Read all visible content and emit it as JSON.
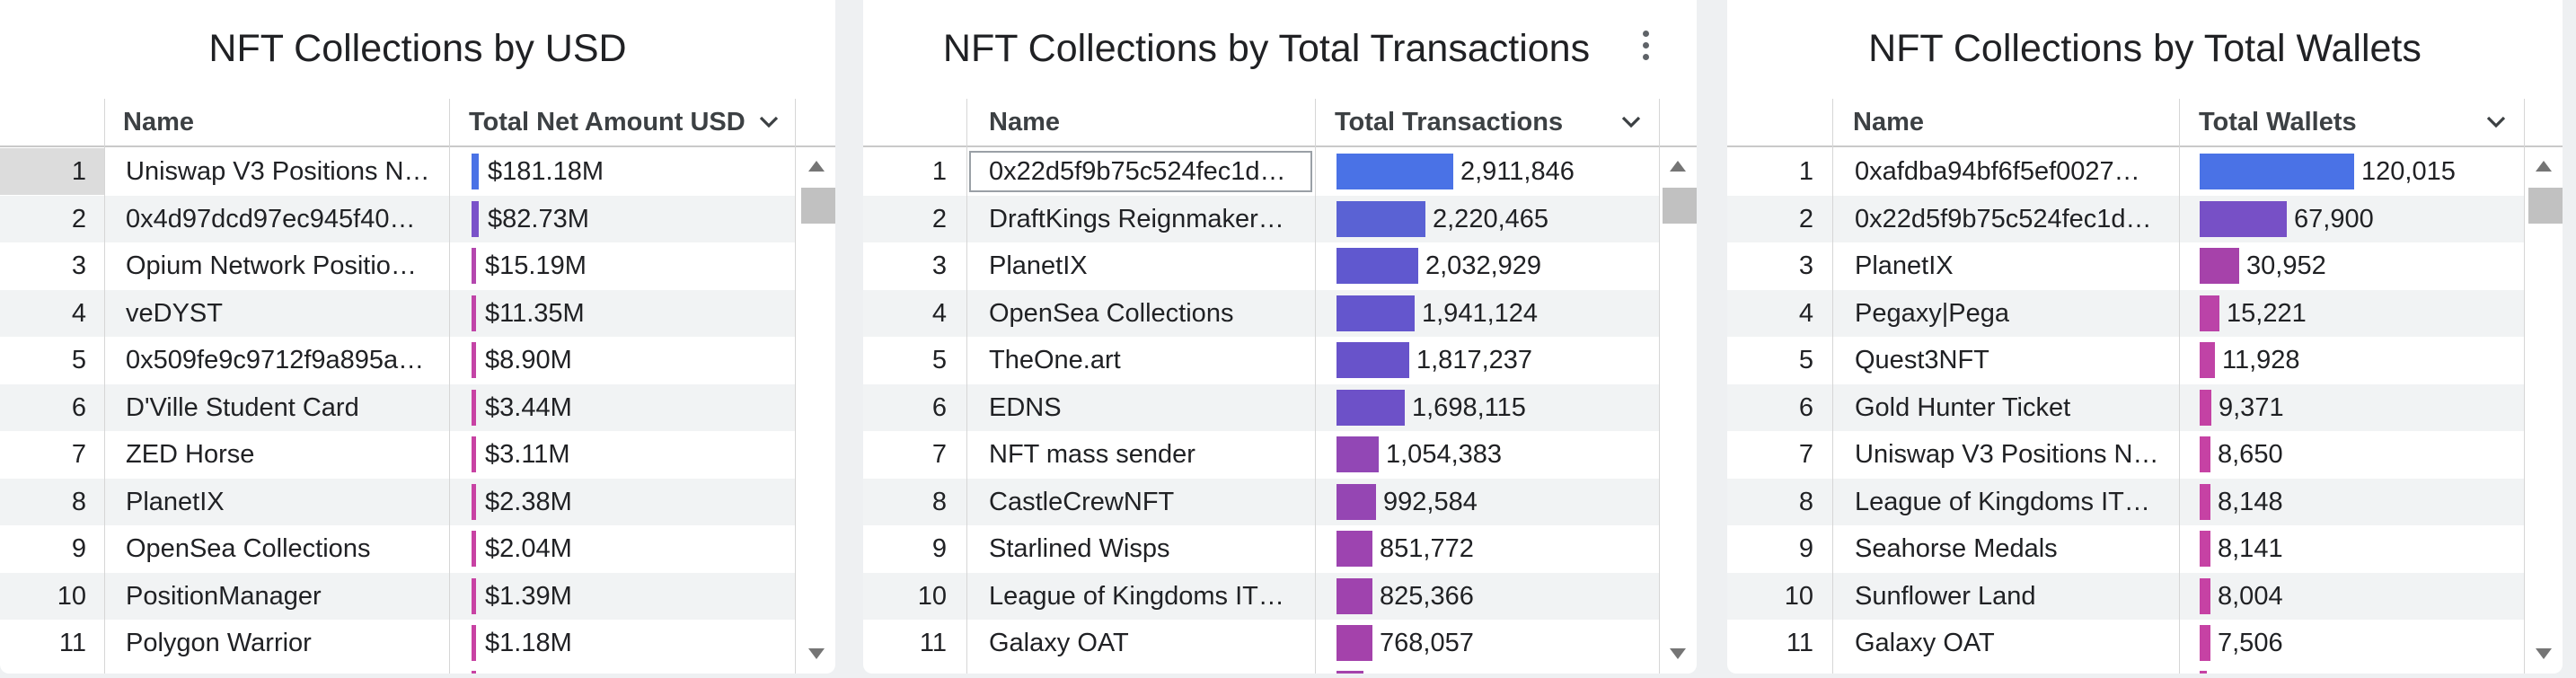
{
  "panels": [
    {
      "title": "NFT Collections by USD",
      "col_name": "Name",
      "col_value": "Total Net Amount USD",
      "rows": [
        {
          "idx": "1",
          "name": "Uniswap V3 Positions N…",
          "value": "$181.18M",
          "raw": 181.18,
          "color": "#4a72e6"
        },
        {
          "idx": "2",
          "name": "0x4d97dcd97ec945f40…",
          "value": "$82.73M",
          "raw": 82.73,
          "color": "#7a52c9"
        },
        {
          "idx": "3",
          "name": "Opium Network Positio…",
          "value": "$15.19M",
          "raw": 15.19,
          "color": "#b447ae"
        },
        {
          "idx": "4",
          "name": "veDYST",
          "value": "$11.35M",
          "raw": 11.35,
          "color": "#c044a8"
        },
        {
          "idx": "5",
          "name": "0x509fe9c9712f9a895a…",
          "value": "$8.90M",
          "raw": 8.9,
          "color": "#c444a6"
        },
        {
          "idx": "6",
          "name": "D'Ville Student Card",
          "value": "$3.44M",
          "raw": 3.44,
          "color": "#c842a3"
        },
        {
          "idx": "7",
          "name": "ZED Horse",
          "value": "$3.11M",
          "raw": 3.11,
          "color": "#c842a3"
        },
        {
          "idx": "8",
          "name": "PlanetIX",
          "value": "$2.38M",
          "raw": 2.38,
          "color": "#c842a3"
        },
        {
          "idx": "9",
          "name": "OpenSea Collections",
          "value": "$2.04M",
          "raw": 2.04,
          "color": "#c842a3"
        },
        {
          "idx": "10",
          "name": "PositionManager",
          "value": "$1.39M",
          "raw": 1.39,
          "color": "#c842a3"
        },
        {
          "idx": "11",
          "name": "Polygon Warrior",
          "value": "$1.18M",
          "raw": 1.18,
          "color": "#c842a3"
        }
      ]
    },
    {
      "title": "NFT Collections by Total Transactions",
      "col_name": "Name",
      "col_value": "Total Transactions",
      "rows": [
        {
          "idx": "1",
          "name": "0x22d5f9b75c524fec1d…",
          "value": "2,911,846",
          "raw": 2911846,
          "color": "#4a72e6"
        },
        {
          "idx": "2",
          "name": "DraftKings Reignmaker…",
          "value": "2,220,465",
          "raw": 2220465,
          "color": "#5a62d4"
        },
        {
          "idx": "3",
          "name": "PlanetIX",
          "value": "2,032,929",
          "raw": 2032929,
          "color": "#6058cf"
        },
        {
          "idx": "4",
          "name": "OpenSea Collections",
          "value": "1,941,124",
          "raw": 1941124,
          "color": "#6456cd"
        },
        {
          "idx": "5",
          "name": "TheOne.art",
          "value": "1,817,237",
          "raw": 1817237,
          "color": "#6853ca"
        },
        {
          "idx": "6",
          "name": "EDNS",
          "value": "1,698,115",
          "raw": 1698115,
          "color": "#6d51c8"
        },
        {
          "idx": "7",
          "name": "NFT mass sender",
          "value": "1,054,383",
          "raw": 1054383,
          "color": "#9247b5"
        },
        {
          "idx": "8",
          "name": "CastleCrewNFT",
          "value": "992,584",
          "raw": 992584,
          "color": "#9546b3"
        },
        {
          "idx": "9",
          "name": "Starlined Wisps",
          "value": "851,772",
          "raw": 851772,
          "color": "#9d44b0"
        },
        {
          "idx": "10",
          "name": "League of Kingdoms IT…",
          "value": "825,366",
          "raw": 825366,
          "color": "#9f43ae"
        },
        {
          "idx": "11",
          "name": "Galaxy OAT",
          "value": "768,057",
          "raw": 768057,
          "color": "#a442ab"
        }
      ]
    },
    {
      "title": "NFT Collections by Total Wallets",
      "col_name": "Name",
      "col_value": "Total Wallets",
      "rows": [
        {
          "idx": "1",
          "name": "0xafdba94bf6f5ef0027…",
          "value": "120,015",
          "raw": 120015,
          "color": "#4a72e6"
        },
        {
          "idx": "2",
          "name": "0x22d5f9b75c524fec1d…",
          "value": "67,900",
          "raw": 67900,
          "color": "#7750c6"
        },
        {
          "idx": "3",
          "name": "PlanetIX",
          "value": "30,952",
          "raw": 30952,
          "color": "#a642aa"
        },
        {
          "idx": "4",
          "name": "Pegaxy|Pega",
          "value": "15,221",
          "raw": 15221,
          "color": "#bb43a8"
        },
        {
          "idx": "5",
          "name": "Quest3NFT",
          "value": "11,928",
          "raw": 11928,
          "color": "#c043a6"
        },
        {
          "idx": "6",
          "name": "Gold Hunter Ticket",
          "value": "9,371",
          "raw": 9371,
          "color": "#c442a4"
        },
        {
          "idx": "7",
          "name": "Uniswap V3 Positions N…",
          "value": "8,650",
          "raw": 8650,
          "color": "#c642a4"
        },
        {
          "idx": "8",
          "name": "League of Kingdoms IT…",
          "value": "8,148",
          "raw": 8148,
          "color": "#c642a4"
        },
        {
          "idx": "9",
          "name": "Seahorse Medals",
          "value": "8,141",
          "raw": 8141,
          "color": "#c642a4"
        },
        {
          "idx": "10",
          "name": "Sunflower Land",
          "value": "8,004",
          "raw": 8004,
          "color": "#c642a4"
        },
        {
          "idx": "11",
          "name": "Galaxy OAT",
          "value": "7,506",
          "raw": 7506,
          "color": "#c642a4"
        }
      ]
    }
  ]
}
